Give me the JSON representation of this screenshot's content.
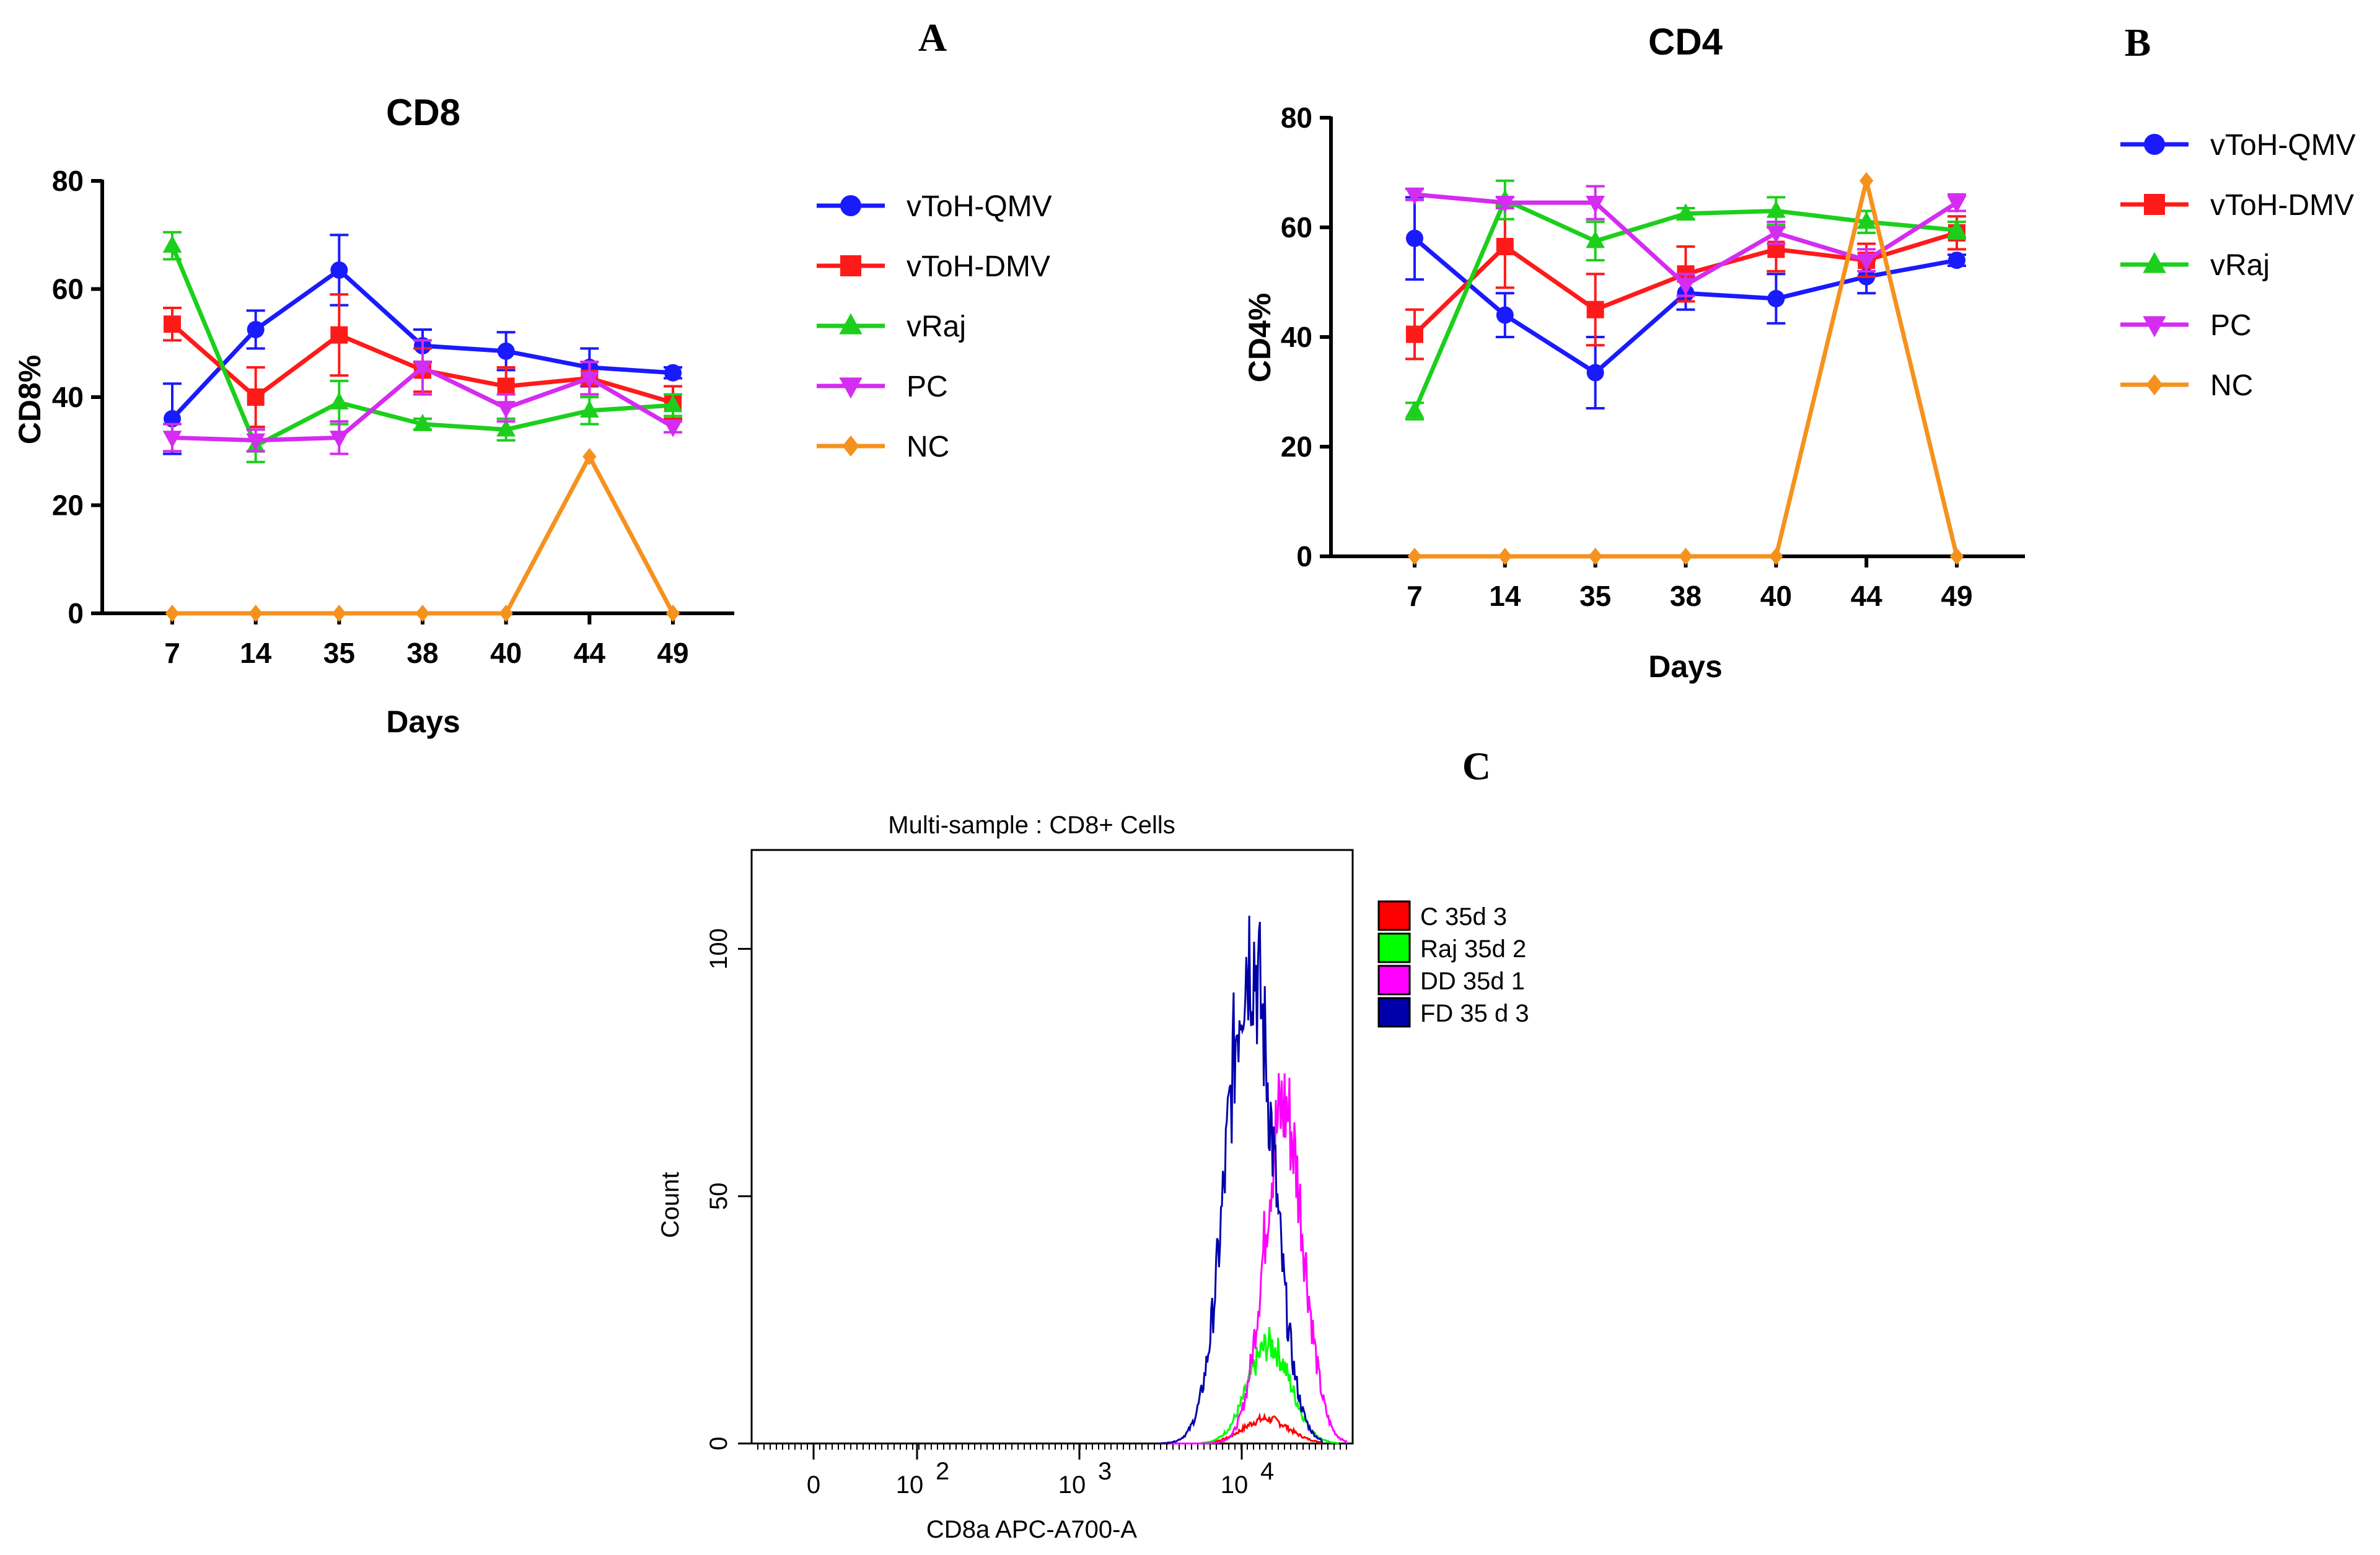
{
  "panel_letters": {
    "a": "A",
    "b": "B",
    "c": "C"
  },
  "chart_data": [
    {
      "type": "line",
      "panel": "A",
      "title": "CD8",
      "xlabel": "Days",
      "ylabel": "CD8%",
      "categories": [
        "7",
        "14",
        "35",
        "38",
        "40",
        "44",
        "49"
      ],
      "ylim": [
        0,
        80
      ],
      "yticks": [
        0,
        20,
        40,
        60,
        80
      ],
      "legend": "right",
      "series": [
        {
          "name": "vToH-QMV",
          "color": "#1a1aff",
          "marker": "circle",
          "values": [
            36,
            52.5,
            63.5,
            49.5,
            48.5,
            45.5,
            44.5
          ],
          "errors": [
            6.5,
            3.5,
            6.5,
            3,
            3.5,
            3.5,
            1
          ]
        },
        {
          "name": "vToH-DMV",
          "color": "#ff1a1a",
          "marker": "square",
          "values": [
            53.5,
            40,
            51.5,
            45,
            42,
            43.5,
            39
          ],
          "errors": [
            3,
            5.5,
            7.5,
            4,
            3.5,
            3,
            3
          ]
        },
        {
          "name": "vRaj",
          "color": "#1ccf1c",
          "marker": "triangle-up",
          "values": [
            68,
            31,
            39,
            35,
            34,
            37.5,
            38.5
          ],
          "errors": [
            2.5,
            3,
            4,
            1,
            2,
            2.5,
            2
          ]
        },
        {
          "name": "PC",
          "color": "#d42cf0",
          "marker": "triangle-down",
          "values": [
            32.5,
            32,
            32.5,
            45.5,
            38,
            43.5,
            34.5
          ],
          "errors": [
            2.5,
            2,
            3,
            5,
            2.5,
            3,
            1
          ]
        },
        {
          "name": "NC",
          "color": "#f5921e",
          "marker": "diamond",
          "values": [
            0,
            0,
            0,
            0,
            0,
            29,
            0
          ],
          "errors": [
            0,
            0,
            0,
            0,
            0,
            0,
            0
          ]
        }
      ]
    },
    {
      "type": "line",
      "panel": "B",
      "title": "CD4",
      "xlabel": "Days",
      "ylabel": "CD4%",
      "categories": [
        "7",
        "14",
        "35",
        "38",
        "40",
        "44",
        "49"
      ],
      "ylim": [
        0,
        80
      ],
      "yticks": [
        0,
        20,
        40,
        60,
        80
      ],
      "legend": "right",
      "series": [
        {
          "name": "vToH-QMV",
          "color": "#1a1aff",
          "marker": "circle",
          "values": [
            58,
            44,
            33.5,
            48,
            47,
            51,
            54
          ],
          "errors": [
            7.5,
            4,
            6.5,
            3,
            4.5,
            3,
            1
          ]
        },
        {
          "name": "vToH-DMV",
          "color": "#ff1a1a",
          "marker": "square",
          "values": [
            40.5,
            56.5,
            45,
            51.5,
            56,
            54,
            59
          ],
          "errors": [
            4.5,
            7.5,
            6.5,
            5,
            4,
            3,
            3
          ]
        },
        {
          "name": "vRaj",
          "color": "#1ccf1c",
          "marker": "triangle-up",
          "values": [
            26.5,
            65,
            57.5,
            62.5,
            63,
            61,
            59.5
          ],
          "errors": [
            1.5,
            3.5,
            3.5,
            1,
            2.5,
            2,
            1.5
          ]
        },
        {
          "name": "PC",
          "color": "#d42cf0",
          "marker": "triangle-down",
          "values": [
            66,
            64.5,
            64.5,
            49.5,
            59,
            54,
            64.5
          ],
          "errors": [
            1,
            1,
            3,
            2,
            2,
            2,
            1.5
          ]
        },
        {
          "name": "NC",
          "color": "#f5921e",
          "marker": "diamond",
          "values": [
            0,
            0,
            0,
            0,
            0,
            68.5,
            0
          ],
          "errors": [
            0,
            0,
            0,
            0,
            0,
            0,
            0
          ]
        }
      ]
    },
    {
      "type": "histogram",
      "panel": "C",
      "title": "Multi-sample : CD8+ Cells",
      "xlabel": "CD8a APC-A700-A",
      "ylabel": "Count",
      "ylim": [
        0,
        120
      ],
      "yticks": [
        "0",
        "50",
        "100"
      ],
      "xticks": [
        {
          "base": "0",
          "exp": ""
        },
        {
          "base": "10",
          "exp": "2"
        },
        {
          "base": "10",
          "exp": "3"
        },
        {
          "base": "10",
          "exp": "4"
        }
      ],
      "legend": "right",
      "series": [
        {
          "name": "C 35d 3",
          "color": "#ff0000",
          "peak_count": 5,
          "center_log": 4.15,
          "width_log": 0.14,
          "start_log": 3.75,
          "end_log": 4.5
        },
        {
          "name": "Raj 35d 2",
          "color": "#00ff00",
          "peak_count": 20,
          "center_log": 4.17,
          "width_log": 0.13,
          "start_log": 3.75,
          "end_log": 4.6
        },
        {
          "name": "DD 35d 1",
          "color": "#ff00ff",
          "peak_count": 68,
          "center_log": 4.26,
          "width_log": 0.12,
          "start_log": 3.55,
          "end_log": 4.65
        },
        {
          "name": "FD 35 d 3",
          "color": "#0000aa",
          "peak_count": 100,
          "center_log": 4.05,
          "width_log": 0.14,
          "start_log": 3.5,
          "end_log": 4.5
        }
      ]
    }
  ]
}
